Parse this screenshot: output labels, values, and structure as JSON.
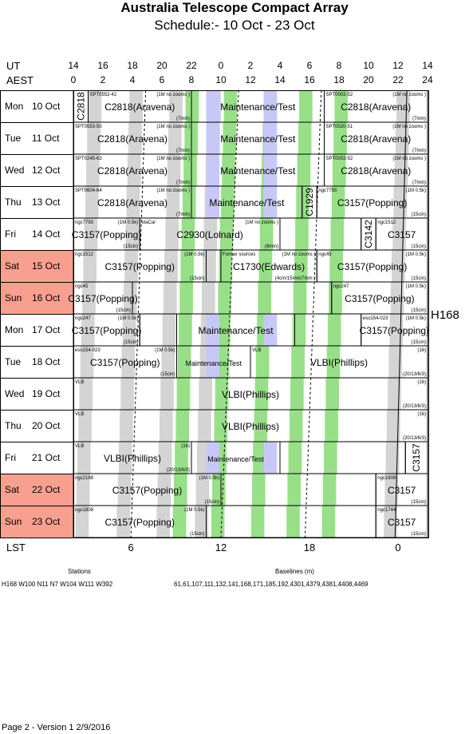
{
  "header": {
    "title": "Australia Telescope Compact Array",
    "subtitle": "Schedule:- 10 Oct - 23 Oct"
  },
  "axes": {
    "ut_label": "UT",
    "aest_label": "AEST",
    "lst_label": "LST",
    "ut_ticks": [
      "14",
      "16",
      "18",
      "20",
      "22",
      "0",
      "2",
      "4",
      "6",
      "8",
      "10",
      "12",
      "14"
    ],
    "aest_ticks": [
      "0",
      "2",
      "4",
      "6",
      "8",
      "10",
      "12",
      "14",
      "16",
      "18",
      "20",
      "22",
      "24"
    ],
    "lst_ticks": [
      "6",
      "12",
      "18",
      "0"
    ],
    "lst_positions_aest": [
      3.9,
      10.0,
      16.0,
      22.0
    ]
  },
  "colors": {
    "weekend": "#f8a090",
    "maintenance": "#c8c8f8",
    "green": "#98e088",
    "grey": "#d4d4d4",
    "grid": "#000000"
  },
  "config_label": "H168",
  "rows": [
    {
      "day": "Mon",
      "date": "10 Oct",
      "weekend": false
    },
    {
      "day": "Tue",
      "date": "11 Oct",
      "weekend": false
    },
    {
      "day": "Wed",
      "date": "12 Oct",
      "weekend": false
    },
    {
      "day": "Thu",
      "date": "13 Oct",
      "weekend": false
    },
    {
      "day": "Fri",
      "date": "14 Oct",
      "weekend": false
    },
    {
      "day": "Sat",
      "date": "15 Oct",
      "weekend": true
    },
    {
      "day": "Sun",
      "date": "16 Oct",
      "weekend": true
    },
    {
      "day": "Mon",
      "date": "17 Oct",
      "weekend": false
    },
    {
      "day": "Tue",
      "date": "18 Oct",
      "weekend": false
    },
    {
      "day": "Wed",
      "date": "19 Oct",
      "weekend": false
    },
    {
      "day": "Thu",
      "date": "20 Oct",
      "weekend": false
    },
    {
      "day": "Fri",
      "date": "21 Oct",
      "weekend": false
    },
    {
      "day": "Sat",
      "date": "22 Oct",
      "weekend": true
    },
    {
      "day": "Sun",
      "date": "23 Oct",
      "weekend": true
    }
  ],
  "blocks": [
    {
      "row": 0,
      "start": 0,
      "end": 1,
      "label": "C2818",
      "vertical": true,
      "src": "",
      "note": ""
    },
    {
      "row": 0,
      "start": 1,
      "end": 8,
      "label": "C2818(Aravena)",
      "src": "SPT0552-42",
      "note": "(1M no zooms )",
      "dur": "(7min)"
    },
    {
      "row": 0,
      "start": 8,
      "end": 17,
      "label": "Maintenance/Test",
      "maint": true,
      "src": "",
      "note": ""
    },
    {
      "row": 0,
      "start": 17,
      "end": 24,
      "label": "C2818(Aravena)",
      "src": "SPT0002-52",
      "note": "(1M no zooms )",
      "dur": "(7min)"
    },
    {
      "row": 1,
      "start": 0,
      "end": 8,
      "label": "C2818(Aravena)",
      "src": "SPT0553-50",
      "note": "(1M no zooms )",
      "dur": "(7min)"
    },
    {
      "row": 1,
      "start": 8,
      "end": 17,
      "label": "Maintenance/Test",
      "maint": true,
      "src": "",
      "note": ""
    },
    {
      "row": 1,
      "start": 17,
      "end": 24,
      "label": "C2818(Aravena)",
      "src": "SPT0020-51",
      "note": "(1M no zooms )",
      "dur": "(7min)"
    },
    {
      "row": 2,
      "start": 0,
      "end": 8,
      "label": "C2818(Aravena)",
      "src": "SPT0245-63",
      "note": "(1M no zooms )",
      "dur": "(7min)"
    },
    {
      "row": 2,
      "start": 8,
      "end": 17,
      "label": "Maintenance/Test",
      "maint": true,
      "src": "",
      "note": ""
    },
    {
      "row": 2,
      "start": 17,
      "end": 24,
      "label": "C2818(Aravena)",
      "src": "SPT0002-52",
      "note": "(1M no zooms )",
      "dur": "(7min)"
    },
    {
      "row": 3,
      "start": 0,
      "end": 8,
      "label": "C2818(Aravena)",
      "src": "SPT0604-64",
      "note": "(1M no zooms )",
      "dur": "(7min)"
    },
    {
      "row": 3,
      "start": 8,
      "end": 15.5,
      "label": "Maintenance/Test",
      "maint": true,
      "src": "",
      "note": ""
    },
    {
      "row": 3,
      "start": 15.5,
      "end": 16.5,
      "label": "C1929",
      "vertical": true,
      "src": "",
      "note": ""
    },
    {
      "row": 3,
      "start": 16.5,
      "end": 24,
      "label": "C3157(Popping)",
      "src": "ngc7793",
      "note": "(1M 0.5k)",
      "dur": "(15cin)"
    },
    {
      "row": 4,
      "start": 0,
      "end": 4.5,
      "label": "C3157(Popping)",
      "src": "ngc7793",
      "note": "(1M 0.5k)",
      "dur": "(15cin)"
    },
    {
      "row": 4,
      "start": 4.5,
      "end": 14,
      "label": "C2930(Lolnard)",
      "src": "etaCar",
      "note": "(1M no zooms )",
      "dur": "(8min)"
    },
    {
      "row": 4,
      "start": 14,
      "end": 19.5,
      "label": "",
      "src": "",
      "note": ""
    },
    {
      "row": 4,
      "start": 19.5,
      "end": 20.5,
      "label": "C3142",
      "vertical": true,
      "src": "",
      "note": ""
    },
    {
      "row": 4,
      "start": 20.5,
      "end": 24,
      "label": "C3157",
      "src": "ngc1512",
      "note": "",
      "dur": "(15cin)"
    },
    {
      "row": 5,
      "start": 0,
      "end": 9,
      "label": "C3157(Popping)",
      "src": "ngc1512",
      "note": "(1M 0.5k)",
      "dur": "(15cin)"
    },
    {
      "row": 5,
      "start": 9,
      "end": 10,
      "label": "",
      "src": "",
      "note": ""
    },
    {
      "row": 5,
      "start": 10,
      "end": 16.5,
      "label": "C1730(Edwards)",
      "src": "Fornax sources",
      "note": "(1M no zooms )",
      "dur": "(4cm/15mm/7mm )"
    },
    {
      "row": 5,
      "start": 16.5,
      "end": 24,
      "label": "C3157(Popping)",
      "src": "ngc45",
      "note": "(1M 0.5k)",
      "dur": "(15cin)"
    },
    {
      "row": 6,
      "start": 0,
      "end": 4,
      "label": "C3157(Popping)",
      "src": "ngc45",
      "note": "",
      "dur": "(15cin)"
    },
    {
      "row": 6,
      "start": 4,
      "end": 17.5,
      "label": "",
      "src": "",
      "note": ""
    },
    {
      "row": 6,
      "start": 17.5,
      "end": 24,
      "label": "C3157(Popping)",
      "src": "ngc247",
      "note": "(1M 0.5k)",
      "dur": "(15cin)"
    },
    {
      "row": 7,
      "start": 0,
      "end": 4.5,
      "label": "C3157(Popping)",
      "src": "ngc247",
      "note": "(1M 0.5k)",
      "dur": "(15cin)"
    },
    {
      "row": 7,
      "start": 4.5,
      "end": 7,
      "label": "",
      "src": "",
      "note": ""
    },
    {
      "row": 7,
      "start": 7,
      "end": 15,
      "label": "Maintenance/Test",
      "maint": true,
      "src": "",
      "note": ""
    },
    {
      "row": 7,
      "start": 15,
      "end": 19.5,
      "label": "",
      "src": "",
      "note": ""
    },
    {
      "row": 7,
      "start": 19.5,
      "end": 24,
      "label": "C3157(Popping)",
      "src": "eso154-023",
      "note": "(1M 0.5k)",
      "dur": "(15cin)"
    },
    {
      "row": 8,
      "start": 0,
      "end": 7,
      "label": "C3157(Popping)",
      "src": "eso154-023",
      "note": "(1M 0.5k)",
      "dur": "(15cin)"
    },
    {
      "row": 8,
      "start": 7,
      "end": 12,
      "label": "Maintenance/Test",
      "maint": true,
      "small": true,
      "src": "",
      "note": ""
    },
    {
      "row": 8,
      "start": 12,
      "end": 24,
      "label": "VLBI(Phillips)",
      "src": "VLB",
      "note": "(16)",
      "dur": "(20/13/6/3)"
    },
    {
      "row": 9,
      "start": 0,
      "end": 24,
      "label": "VLBI(Phillips)",
      "src": "VLB",
      "note": "(16)",
      "dur": "(20/13/6/3)"
    },
    {
      "row": 10,
      "start": 0,
      "end": 24,
      "label": "VLBI(Phillips)",
      "src": "VLB",
      "note": "(16)",
      "dur": "(20/13/6/3)"
    },
    {
      "row": 11,
      "start": 0,
      "end": 8,
      "label": "VLBI(Phillips)",
      "src": "VLB",
      "note": "(16)",
      "dur": "(20/13/6/3)"
    },
    {
      "row": 11,
      "start": 8,
      "end": 14,
      "label": "Maintenance/Test",
      "maint": true,
      "small": true,
      "src": "",
      "note": ""
    },
    {
      "row": 11,
      "start": 14,
      "end": 22.5,
      "label": "",
      "src": "",
      "note": ""
    },
    {
      "row": 11,
      "start": 22.5,
      "end": 24,
      "label": "C3157",
      "vertical": true,
      "src": "",
      "note": ""
    },
    {
      "row": 12,
      "start": 0,
      "end": 10,
      "label": "C3157(Popping)",
      "src": "ngc2188",
      "note": "(1M 0.5k)",
      "dur": "(15cin)"
    },
    {
      "row": 12,
      "start": 10,
      "end": 20.5,
      "label": "",
      "src": "",
      "note": ""
    },
    {
      "row": 12,
      "start": 20.5,
      "end": 24,
      "label": "C3157",
      "src": "ngc1808",
      "note": "",
      "dur": "(15cin)"
    },
    {
      "row": 13,
      "start": 0,
      "end": 9,
      "label": "C3157(Popping)",
      "src": "ngc1808",
      "note": "(1M 0.5k)",
      "dur": "(15cin)"
    },
    {
      "row": 13,
      "start": 9,
      "end": 20.5,
      "label": "",
      "src": "",
      "note": ""
    },
    {
      "row": 13,
      "start": 20.5,
      "end": 24,
      "label": "C3157",
      "src": "ngc1744",
      "note": "",
      "dur": "(15cin)"
    }
  ],
  "footer": {
    "stations_title": "Stations",
    "stations": "H168  W100 N11 N7 W104 W111 W392",
    "baselines_title": "Baselines (m)",
    "baselines": "61,61,107,111,132,141,168,171,185,192,4301,4379,4381,4408,4469",
    "version": "Page 2 - Version 1  2/9/2016"
  }
}
